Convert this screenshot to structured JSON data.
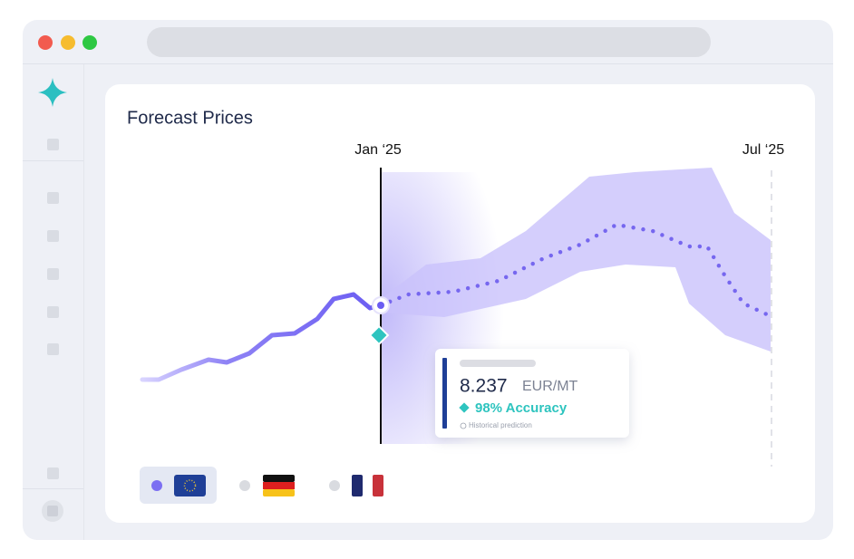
{
  "card": {
    "title": "Forecast Prices",
    "start_label": "Jan ‘25",
    "end_label": "Jul ‘25"
  },
  "tooltip": {
    "value": "8.237",
    "unit": "EUR/MT",
    "accuracy": "98% Accuracy",
    "note": "Historical prediction"
  }
}
